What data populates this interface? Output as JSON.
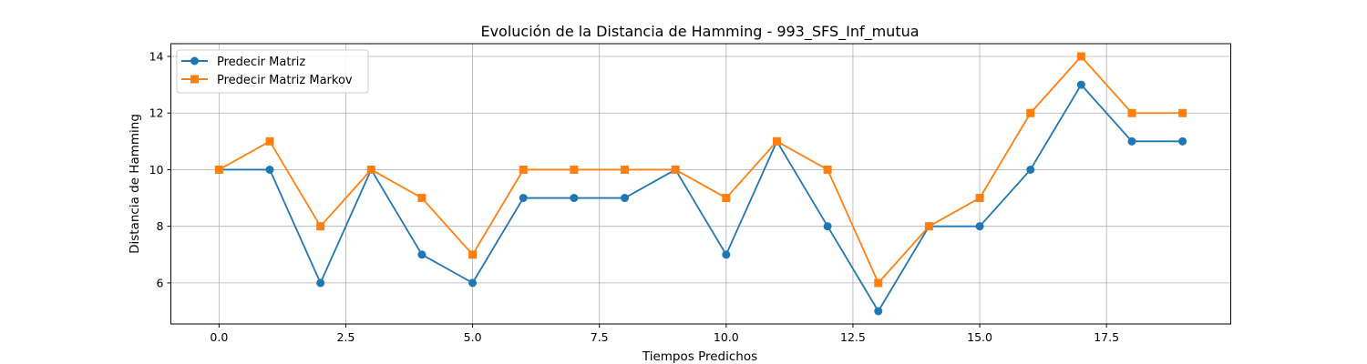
{
  "chart_data": {
    "type": "line",
    "title": "Evolución de la Distancia de Hamming - 993_SFS_Inf_mutua",
    "xlabel": "Tiempos Predichos",
    "ylabel": "Distancia de Hamming",
    "x": [
      0,
      1,
      2,
      3,
      4,
      5,
      6,
      7,
      8,
      9,
      10,
      11,
      12,
      13,
      14,
      15,
      16,
      17,
      18,
      19
    ],
    "xlim": [
      -0.95,
      19.95
    ],
    "ylim": [
      4.55,
      14.45
    ],
    "xticks": [
      0.0,
      2.5,
      5.0,
      7.5,
      10.0,
      12.5,
      15.0,
      17.5
    ],
    "xtick_labels": [
      "0.0",
      "2.5",
      "5.0",
      "7.5",
      "10.0",
      "12.5",
      "15.0",
      "17.5"
    ],
    "yticks": [
      6,
      8,
      10,
      12,
      14
    ],
    "ytick_labels": [
      "6",
      "8",
      "10",
      "12",
      "14"
    ],
    "grid": true,
    "legend_position": "top-left",
    "series": [
      {
        "name": "Predecir Matriz",
        "color": "#1f77b4",
        "marker": "circle",
        "values": [
          10,
          10,
          6,
          10,
          7,
          6,
          9,
          9,
          9,
          10,
          7,
          11,
          8,
          5,
          8,
          8,
          10,
          13,
          11,
          11
        ]
      },
      {
        "name": "Predecir Matriz Markov",
        "color": "#ff7f0e",
        "marker": "square",
        "values": [
          10,
          11,
          8,
          10,
          9,
          7,
          10,
          10,
          10,
          10,
          9,
          11,
          10,
          6,
          8,
          9,
          12,
          14,
          12,
          12
        ]
      }
    ]
  }
}
